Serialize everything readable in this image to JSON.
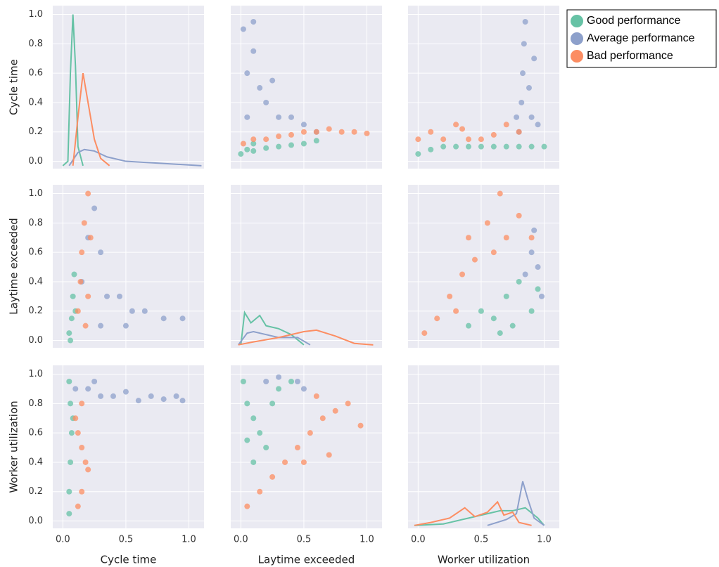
{
  "chart_data": {
    "type": "pairplot",
    "variables": [
      "Cycle time",
      "Laytime exceeded",
      "Worker utilization"
    ],
    "series": [
      {
        "name": "Good performance",
        "color": "#66c2a5"
      },
      {
        "name": "Average performance",
        "color": "#8da0cb"
      },
      {
        "name": "Bad performance",
        "color": "#fc8d62"
      }
    ],
    "xlim": [
      -0.08,
      1.12
    ],
    "ylim": [
      -0.05,
      1.06
    ],
    "xticks": [
      {
        "value": 0,
        "label": "0.0"
      },
      0.5,
      {
        "value": 1,
        "label": "1.0"
      }
    ],
    "yticks": [
      {
        "value": 0,
        "label": "0.0"
      },
      0.2,
      0.4,
      0.6,
      0.8,
      {
        "value": 1,
        "label": "1.0"
      }
    ],
    "grid": true,
    "legend": "upper right",
    "panels": [
      [
        {
          "type": "line",
          "series": [
            {
              "x": [
                0.0,
                0.04,
                0.06,
                0.08,
                0.1,
                0.12,
                0.16
              ],
              "values": [
                -0.03,
                0.0,
                0.6,
                1.0,
                0.65,
                0.1,
                -0.03
              ]
            },
            {
              "x": [
                0.05,
                0.12,
                0.17,
                0.25,
                0.35,
                0.5,
                0.7,
                0.9,
                1.1
              ],
              "values": [
                -0.03,
                0.06,
                0.08,
                0.07,
                0.03,
                0.0,
                -0.01,
                -0.02,
                -0.03
              ]
            },
            {
              "x": [
                0.08,
                0.12,
                0.16,
                0.2,
                0.25,
                0.3,
                0.37
              ],
              "values": [
                -0.03,
                0.3,
                0.6,
                0.4,
                0.15,
                0.02,
                -0.03
              ]
            }
          ]
        },
        {
          "type": "scatter",
          "series": [
            {
              "x": [
                0.0,
                0.05,
                0.1,
                0.2,
                0.3,
                0.4,
                0.5,
                0.6,
                0.1
              ],
              "values": [
                0.05,
                0.08,
                0.07,
                0.09,
                0.1,
                0.11,
                0.12,
                0.14,
                0.12
              ]
            },
            {
              "x": [
                0.02,
                0.05,
                0.1,
                0.15,
                0.2,
                0.3,
                0.4,
                0.5,
                0.6,
                0.05,
                0.25,
                0.1
              ],
              "values": [
                0.9,
                0.6,
                0.75,
                0.5,
                0.4,
                0.3,
                0.3,
                0.25,
                0.2,
                0.3,
                0.55,
                0.95
              ]
            },
            {
              "x": [
                0.02,
                0.1,
                0.2,
                0.3,
                0.4,
                0.5,
                0.6,
                0.7,
                0.8,
                0.9,
                1.0
              ],
              "values": [
                0.12,
                0.15,
                0.15,
                0.17,
                0.18,
                0.2,
                0.2,
                0.22,
                0.2,
                0.2,
                0.19
              ]
            }
          ]
        },
        {
          "type": "scatter",
          "series": [
            {
              "x": [
                0.0,
                0.1,
                0.2,
                0.3,
                0.4,
                0.5,
                0.6,
                0.7,
                0.8,
                0.9,
                1.0
              ],
              "values": [
                0.05,
                0.08,
                0.1,
                0.1,
                0.1,
                0.1,
                0.1,
                0.1,
                0.1,
                0.1,
                0.1
              ]
            },
            {
              "x": [
                0.8,
                0.82,
                0.83,
                0.84,
                0.85,
                0.88,
                0.9,
                0.95,
                0.78,
                0.92
              ],
              "values": [
                0.2,
                0.4,
                0.6,
                0.8,
                0.95,
                0.5,
                0.3,
                0.25,
                0.3,
                0.7
              ]
            },
            {
              "x": [
                0.0,
                0.1,
                0.2,
                0.3,
                0.35,
                0.4,
                0.5,
                0.6,
                0.7,
                0.8
              ],
              "values": [
                0.15,
                0.2,
                0.15,
                0.25,
                0.22,
                0.15,
                0.15,
                0.18,
                0.25,
                0.2
              ]
            }
          ]
        }
      ],
      [
        {
          "type": "scatter",
          "series": [
            {
              "x": [
                0.05,
                0.07,
                0.08,
                0.09,
                0.1,
                0.06
              ],
              "values": [
                0.05,
                0.15,
                0.3,
                0.45,
                0.2,
                0.0
              ]
            },
            {
              "x": [
                0.15,
                0.2,
                0.25,
                0.3,
                0.35,
                0.45,
                0.55,
                0.65,
                0.8,
                0.95,
                0.3,
                0.5
              ],
              "values": [
                0.4,
                0.7,
                0.9,
                0.6,
                0.3,
                0.3,
                0.2,
                0.2,
                0.15,
                0.15,
                0.1,
                0.1
              ]
            },
            {
              "x": [
                0.12,
                0.14,
                0.15,
                0.17,
                0.2,
                0.22,
                0.2,
                0.18
              ],
              "values": [
                0.2,
                0.4,
                0.6,
                0.8,
                1.0,
                0.7,
                0.3,
                0.1
              ]
            }
          ]
        },
        {
          "type": "line",
          "series": [
            {
              "x": [
                0.0,
                0.03,
                0.08,
                0.15,
                0.2,
                0.3,
                0.4,
                0.5
              ],
              "values": [
                -0.03,
                0.19,
                0.12,
                0.17,
                0.1,
                0.08,
                0.04,
                -0.03
              ]
            },
            {
              "x": [
                -0.02,
                0.05,
                0.1,
                0.2,
                0.3,
                0.45,
                0.55
              ],
              "values": [
                -0.03,
                0.05,
                0.06,
                0.04,
                0.02,
                0.02,
                -0.03
              ]
            },
            {
              "x": [
                -0.02,
                0.1,
                0.3,
                0.5,
                0.6,
                0.75,
                0.9,
                1.05
              ],
              "values": [
                -0.03,
                -0.01,
                0.02,
                0.06,
                0.07,
                0.03,
                -0.02,
                -0.03
              ]
            }
          ]
        },
        {
          "type": "scatter",
          "series": [
            {
              "x": [
                0.4,
                0.5,
                0.6,
                0.7,
                0.75,
                0.8,
                0.9,
                0.95,
                0.65
              ],
              "values": [
                0.1,
                0.2,
                0.15,
                0.3,
                0.1,
                0.4,
                0.2,
                0.35,
                0.05
              ]
            },
            {
              "x": [
                0.85,
                0.9,
                0.95,
                0.98,
                0.92
              ],
              "values": [
                0.45,
                0.6,
                0.5,
                0.3,
                0.75
              ]
            },
            {
              "x": [
                0.05,
                0.15,
                0.25,
                0.35,
                0.4,
                0.45,
                0.55,
                0.6,
                0.65,
                0.7,
                0.8,
                0.9,
                0.3
              ],
              "values": [
                0.05,
                0.15,
                0.3,
                0.45,
                0.7,
                0.55,
                0.8,
                0.6,
                1.0,
                0.7,
                0.85,
                0.7,
                0.2
              ]
            }
          ]
        }
      ],
      [
        {
          "type": "scatter",
          "series": [
            {
              "x": [
                0.05,
                0.06,
                0.07,
                0.06,
                0.05,
                0.05,
                0.08
              ],
              "values": [
                0.95,
                0.8,
                0.6,
                0.4,
                0.2,
                0.05,
                0.7
              ]
            },
            {
              "x": [
                0.1,
                0.2,
                0.3,
                0.4,
                0.5,
                0.6,
                0.7,
                0.8,
                0.9,
                0.95,
                0.25
              ],
              "values": [
                0.9,
                0.9,
                0.85,
                0.85,
                0.88,
                0.82,
                0.85,
                0.83,
                0.85,
                0.82,
                0.95
              ]
            },
            {
              "x": [
                0.1,
                0.12,
                0.15,
                0.18,
                0.2,
                0.15,
                0.12,
                0.15
              ],
              "values": [
                0.7,
                0.6,
                0.5,
                0.4,
                0.35,
                0.2,
                0.1,
                0.8
              ]
            }
          ]
        },
        {
          "type": "scatter",
          "series": [
            {
              "x": [
                0.02,
                0.05,
                0.1,
                0.15,
                0.2,
                0.1,
                0.05,
                0.25,
                0.3,
                0.4
              ],
              "values": [
                0.95,
                0.8,
                0.7,
                0.6,
                0.5,
                0.4,
                0.55,
                0.8,
                0.9,
                0.95
              ]
            },
            {
              "x": [
                0.3,
                0.45,
                0.5,
                0.2
              ],
              "values": [
                0.98,
                0.95,
                0.9,
                0.95
              ]
            },
            {
              "x": [
                0.05,
                0.15,
                0.25,
                0.35,
                0.45,
                0.55,
                0.65,
                0.75,
                0.85,
                0.95,
                0.7,
                0.5,
                0.6
              ],
              "values": [
                0.1,
                0.2,
                0.3,
                0.4,
                0.5,
                0.6,
                0.7,
                0.75,
                0.8,
                0.65,
                0.45,
                0.4,
                0.85
              ]
            }
          ]
        },
        {
          "type": "line",
          "series": [
            {
              "x": [
                -0.03,
                0.2,
                0.4,
                0.55,
                0.65,
                0.75,
                0.85,
                0.95,
                1.0
              ],
              "values": [
                -0.03,
                -0.02,
                0.02,
                0.05,
                0.07,
                0.07,
                0.09,
                0.02,
                -0.03
              ]
            },
            {
              "x": [
                0.55,
                0.7,
                0.78,
                0.83,
                0.87,
                0.92,
                1.0
              ],
              "values": [
                -0.03,
                0.01,
                0.05,
                0.27,
                0.15,
                0.02,
                -0.03
              ]
            },
            {
              "x": [
                -0.03,
                0.1,
                0.25,
                0.37,
                0.45,
                0.55,
                0.63,
                0.68,
                0.75,
                0.8,
                0.9
              ],
              "values": [
                -0.03,
                -0.01,
                0.02,
                0.09,
                0.03,
                0.06,
                0.13,
                0.04,
                0.06,
                -0.01,
                -0.03
              ]
            }
          ]
        }
      ]
    ]
  }
}
